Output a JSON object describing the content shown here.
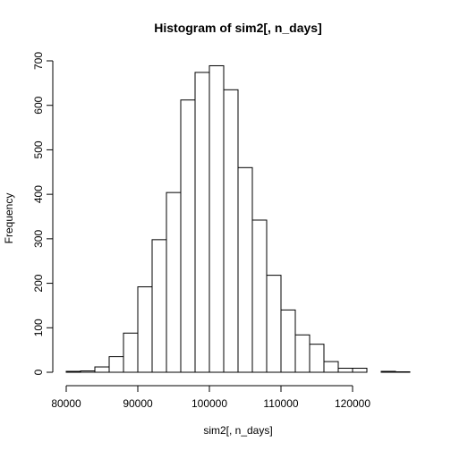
{
  "chart_data": {
    "type": "bar",
    "title": "Histogram of sim2[, n_days]",
    "xlabel": "sim2[, n_days]",
    "ylabel": "Frequency",
    "bin_width": 2000,
    "bins": [
      {
        "start": 80000,
        "end": 82000,
        "count": 2
      },
      {
        "start": 82000,
        "end": 84000,
        "count": 3
      },
      {
        "start": 84000,
        "end": 86000,
        "count": 12
      },
      {
        "start": 86000,
        "end": 88000,
        "count": 35
      },
      {
        "start": 88000,
        "end": 90000,
        "count": 88
      },
      {
        "start": 90000,
        "end": 92000,
        "count": 192
      },
      {
        "start": 92000,
        "end": 94000,
        "count": 298
      },
      {
        "start": 94000,
        "end": 96000,
        "count": 404
      },
      {
        "start": 96000,
        "end": 98000,
        "count": 612
      },
      {
        "start": 98000,
        "end": 100000,
        "count": 674
      },
      {
        "start": 100000,
        "end": 102000,
        "count": 689
      },
      {
        "start": 102000,
        "end": 104000,
        "count": 635
      },
      {
        "start": 104000,
        "end": 106000,
        "count": 460
      },
      {
        "start": 106000,
        "end": 108000,
        "count": 342
      },
      {
        "start": 108000,
        "end": 110000,
        "count": 218
      },
      {
        "start": 110000,
        "end": 112000,
        "count": 140
      },
      {
        "start": 112000,
        "end": 114000,
        "count": 84
      },
      {
        "start": 114000,
        "end": 116000,
        "count": 63
      },
      {
        "start": 116000,
        "end": 118000,
        "count": 24
      },
      {
        "start": 118000,
        "end": 120000,
        "count": 9
      },
      {
        "start": 120000,
        "end": 122000,
        "count": 9
      },
      {
        "start": 122000,
        "end": 124000,
        "count": 0
      },
      {
        "start": 124000,
        "end": 126000,
        "count": 2
      },
      {
        "start": 126000,
        "end": 128000,
        "count": 1
      }
    ],
    "xlim": [
      80000,
      128000
    ],
    "ylim": [
      0,
      700
    ],
    "x_ticks": [
      80000,
      90000,
      100000,
      110000,
      120000
    ],
    "x_tick_labels": [
      "80000",
      "90000",
      "100000",
      "110000",
      "120000"
    ],
    "y_ticks": [
      0,
      100,
      200,
      300,
      400,
      500,
      600,
      700
    ],
    "y_tick_labels": [
      "0",
      "100",
      "200",
      "300",
      "400",
      "500",
      "600",
      "700"
    ],
    "grid": false,
    "legend": "none"
  }
}
